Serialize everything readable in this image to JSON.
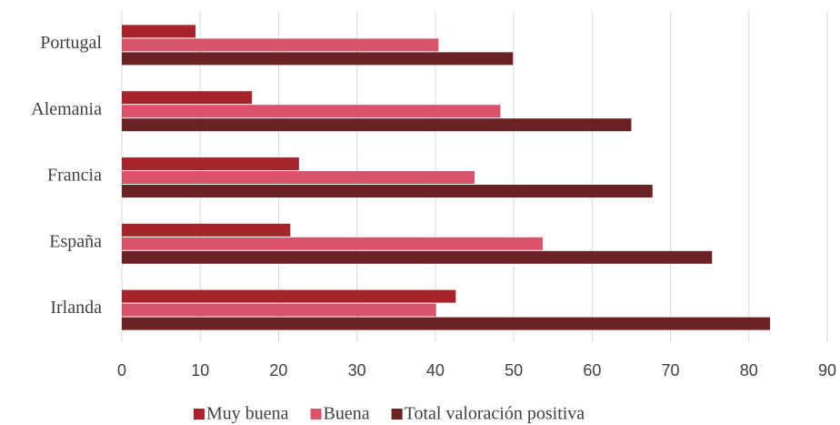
{
  "chart_data": {
    "type": "bar",
    "orientation": "horizontal",
    "categories": [
      "Portugal",
      "Alemania",
      "Francia",
      "España",
      "Irlanda"
    ],
    "series": [
      {
        "name": "Muy buena",
        "color": "#a8222a",
        "values": [
          9.4,
          16.6,
          22.6,
          21.5,
          42.6
        ]
      },
      {
        "name": "Buena",
        "color": "#d9536a",
        "values": [
          40.4,
          48.3,
          45.0,
          53.7,
          40.1
        ]
      },
      {
        "name": "Total valoración positiva",
        "color": "#6b2224",
        "values": [
          49.9,
          65.0,
          67.7,
          75.3,
          82.7
        ]
      }
    ],
    "xlim": [
      0,
      90
    ],
    "xticks": [
      0,
      10,
      20,
      30,
      40,
      50,
      60,
      70,
      80,
      90
    ],
    "grid": true,
    "legend": "bottom"
  }
}
